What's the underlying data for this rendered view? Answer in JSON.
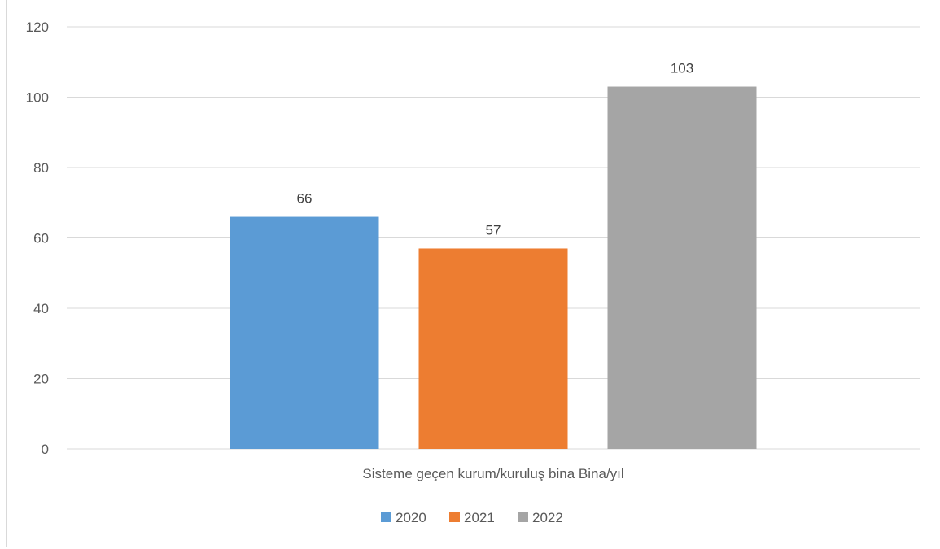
{
  "chart_data": {
    "type": "bar",
    "categories": [
      "Sisteme geçen kurum/kuruluş bina Bina/yıl"
    ],
    "series": [
      {
        "name": "2020",
        "values": [
          66
        ],
        "color": "#5b9bd5"
      },
      {
        "name": "2021",
        "values": [
          57
        ],
        "color": "#ed7d31"
      },
      {
        "name": "2022",
        "values": [
          103
        ],
        "color": "#a5a5a5"
      }
    ],
    "yticks": [
      0,
      20,
      40,
      60,
      80,
      100,
      120
    ],
    "ylim": [
      0,
      120
    ],
    "grid": true,
    "legend_position": "bottom",
    "data_labels": true
  }
}
